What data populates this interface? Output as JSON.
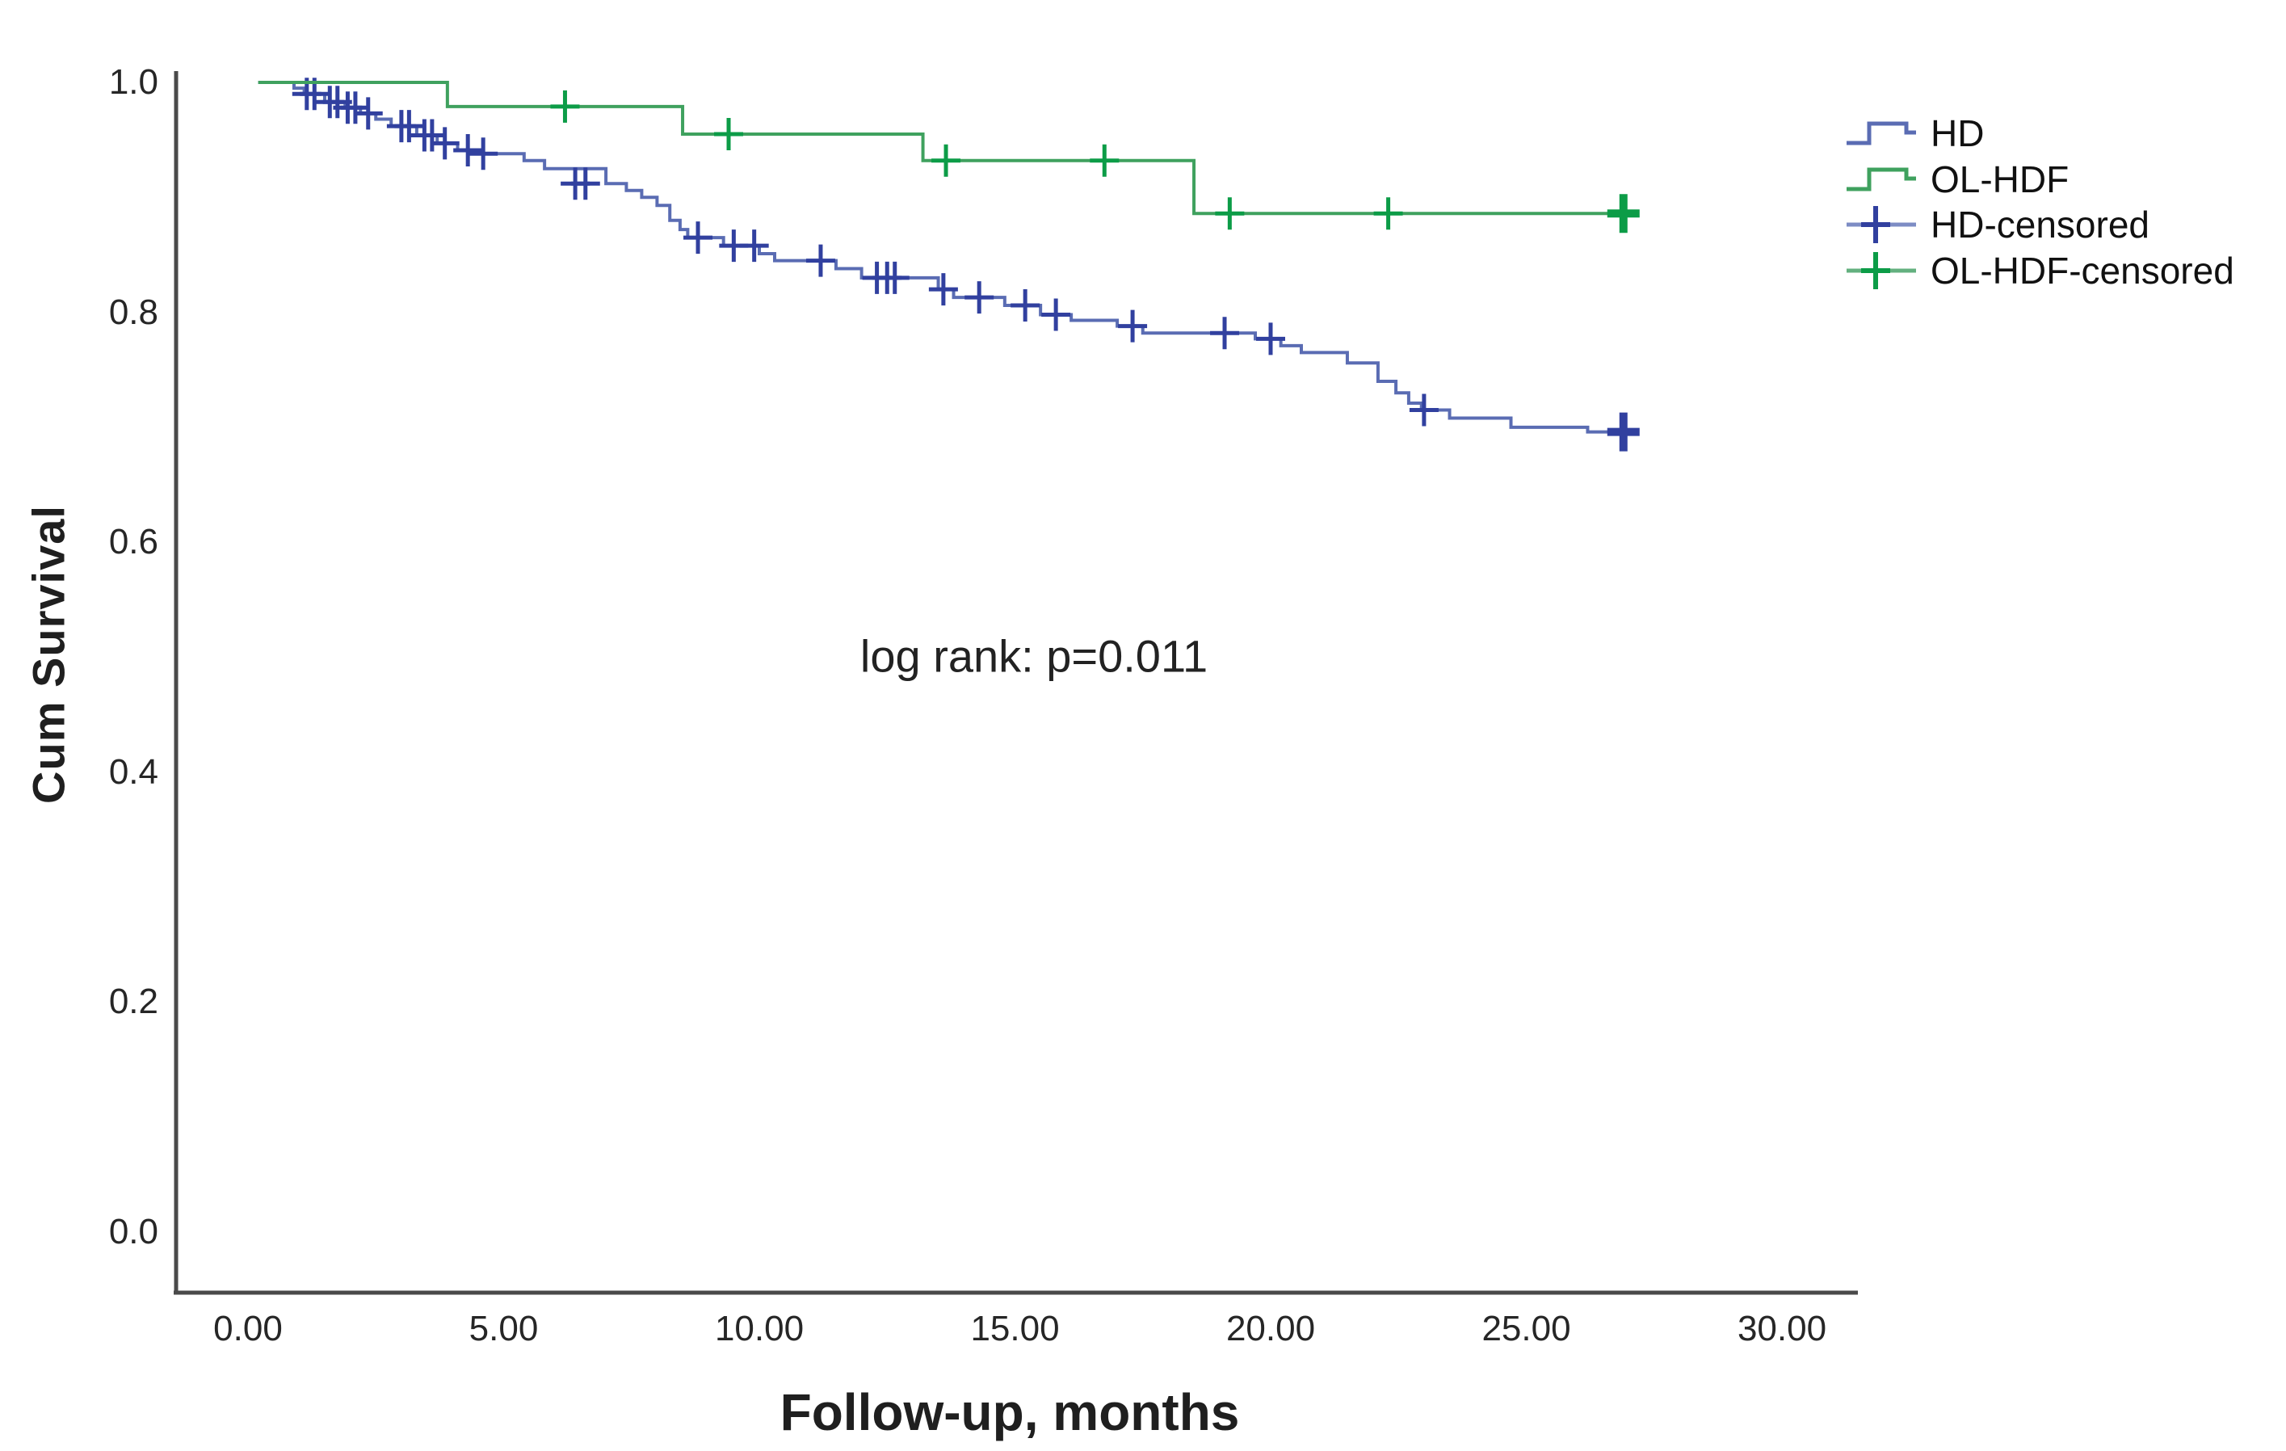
{
  "chart_data": {
    "type": "line",
    "subtype": "kaplan_meier_step_survival",
    "title": "",
    "annotation": "log rank: p=0.011",
    "xlabel": "Follow-up, months",
    "ylabel": "Cum Survival",
    "grid": false,
    "legend_position": "right-top",
    "xlim": [
      0,
      30
    ],
    "ylim": [
      0.0,
      1.0
    ],
    "x_ticks": {
      "values": [
        0,
        5,
        10,
        15,
        20,
        25,
        30
      ],
      "labels": [
        "0.00",
        "5.00",
        "10.00",
        "15.00",
        "20.00",
        "25.00",
        "30.00"
      ]
    },
    "y_ticks": {
      "values": [
        0.0,
        0.2,
        0.4,
        0.6,
        0.8,
        1.0
      ],
      "labels": [
        "0.0",
        "0.2",
        "0.4",
        "0.6",
        "0.8",
        "1.0"
      ]
    },
    "series": [
      {
        "name": "HD",
        "line_color": "#5a6cb3",
        "censor_color": "#31409f",
        "start_t": 0.2,
        "end_t": 27.15,
        "steps": [
          [
            0.2,
            1.0
          ],
          [
            0.9,
            0.995
          ],
          [
            1.1,
            0.99
          ],
          [
            1.5,
            0.983
          ],
          [
            1.9,
            0.978
          ],
          [
            2.2,
            0.973
          ],
          [
            2.5,
            0.968
          ],
          [
            2.8,
            0.962
          ],
          [
            3.3,
            0.954
          ],
          [
            3.7,
            0.947
          ],
          [
            4.1,
            0.941
          ],
          [
            4.5,
            0.938
          ],
          [
            5.4,
            0.932
          ],
          [
            5.8,
            0.925
          ],
          [
            7.0,
            0.912
          ],
          [
            7.4,
            0.906
          ],
          [
            7.7,
            0.9
          ],
          [
            8.0,
            0.893
          ],
          [
            8.25,
            0.88
          ],
          [
            8.45,
            0.872
          ],
          [
            8.6,
            0.865
          ],
          [
            9.3,
            0.858
          ],
          [
            10.0,
            0.851
          ],
          [
            10.3,
            0.845
          ],
          [
            11.5,
            0.838
          ],
          [
            12.0,
            0.83
          ],
          [
            13.5,
            0.82
          ],
          [
            13.8,
            0.813
          ],
          [
            14.8,
            0.806
          ],
          [
            15.5,
            0.798
          ],
          [
            16.1,
            0.793
          ],
          [
            17.0,
            0.788
          ],
          [
            17.5,
            0.782
          ],
          [
            19.7,
            0.777
          ],
          [
            20.2,
            0.771
          ],
          [
            20.6,
            0.765
          ],
          [
            21.5,
            0.756
          ],
          [
            22.1,
            0.74
          ],
          [
            22.45,
            0.73
          ],
          [
            22.7,
            0.721
          ],
          [
            22.95,
            0.715
          ],
          [
            23.5,
            0.708
          ],
          [
            24.7,
            0.7
          ],
          [
            26.2,
            0.696
          ]
        ],
        "censors": [
          [
            1.15,
            0.99
          ],
          [
            1.3,
            0.99
          ],
          [
            1.6,
            0.983
          ],
          [
            1.75,
            0.983
          ],
          [
            1.95,
            0.978
          ],
          [
            2.1,
            0.978
          ],
          [
            2.35,
            0.973
          ],
          [
            3.0,
            0.962
          ],
          [
            3.15,
            0.962
          ],
          [
            3.45,
            0.954
          ],
          [
            3.6,
            0.954
          ],
          [
            3.85,
            0.947
          ],
          [
            4.3,
            0.941
          ],
          [
            4.6,
            0.938
          ],
          [
            6.4,
            0.912
          ],
          [
            6.6,
            0.912
          ],
          [
            8.8,
            0.865
          ],
          [
            9.5,
            0.858
          ],
          [
            9.9,
            0.858
          ],
          [
            11.2,
            0.845
          ],
          [
            12.3,
            0.83
          ],
          [
            12.5,
            0.83
          ],
          [
            12.65,
            0.83
          ],
          [
            13.6,
            0.82
          ],
          [
            14.3,
            0.813
          ],
          [
            15.2,
            0.806
          ],
          [
            15.8,
            0.798
          ],
          [
            17.3,
            0.788
          ],
          [
            19.1,
            0.782
          ],
          [
            20.0,
            0.777
          ],
          [
            23.0,
            0.715
          ]
        ],
        "end_censor": [
          26.9,
          0.696
        ]
      },
      {
        "name": "OL-HDF",
        "line_color": "#3fa15e",
        "censor_color": "#0c9c47",
        "start_t": 0.2,
        "end_t": 27.2,
        "steps": [
          [
            0.2,
            1.0
          ],
          [
            3.9,
            0.979
          ],
          [
            8.5,
            0.955
          ],
          [
            13.2,
            0.932
          ],
          [
            18.5,
            0.886
          ]
        ],
        "censors": [
          [
            6.2,
            0.979
          ],
          [
            9.4,
            0.955
          ],
          [
            13.65,
            0.932
          ],
          [
            16.75,
            0.932
          ],
          [
            19.2,
            0.886
          ],
          [
            22.3,
            0.886
          ]
        ],
        "end_censor": [
          26.9,
          0.886
        ]
      }
    ],
    "legend": [
      {
        "label": "HD",
        "type": "step",
        "color": "#5a6cb3"
      },
      {
        "label": "OL-HDF",
        "type": "step",
        "color": "#3fa15e"
      },
      {
        "label": "HD-censored",
        "type": "censor",
        "color": "#7d8cc4",
        "cross_color": "#31409f"
      },
      {
        "label": "OL-HDF-censored",
        "type": "censor",
        "color": "#63b07f",
        "cross_color": "#0c9c47"
      }
    ],
    "axis_color": "#4a4a4a"
  }
}
